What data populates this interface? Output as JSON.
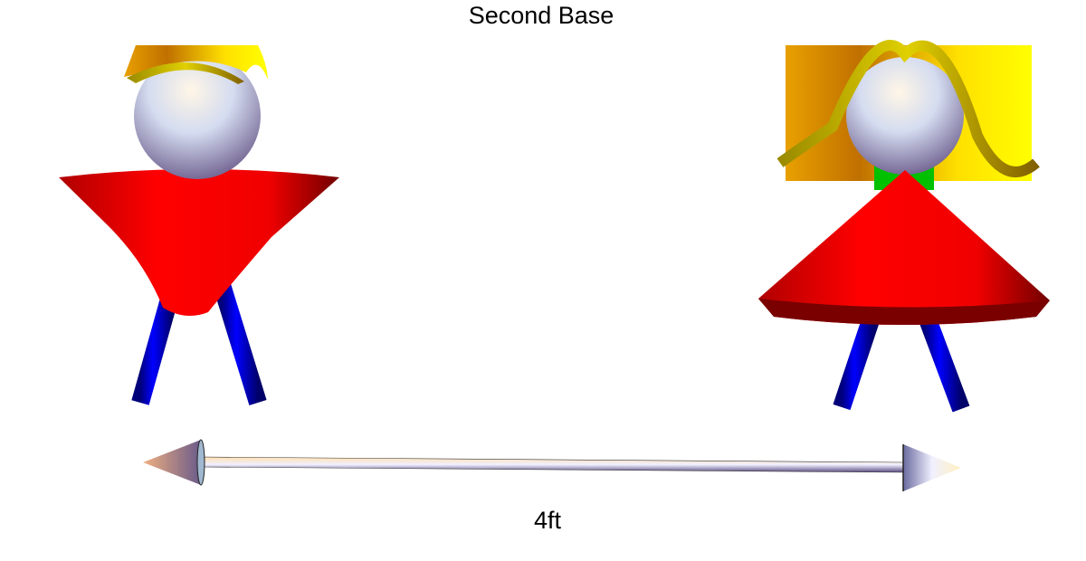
{
  "title": "Second Base",
  "distance_label": "4ft",
  "colors": {
    "shirt": "#ff0000",
    "legs": "#0000ff",
    "neck": "#00c000",
    "hair": "#ffd400",
    "head": "#dfe6f5"
  }
}
